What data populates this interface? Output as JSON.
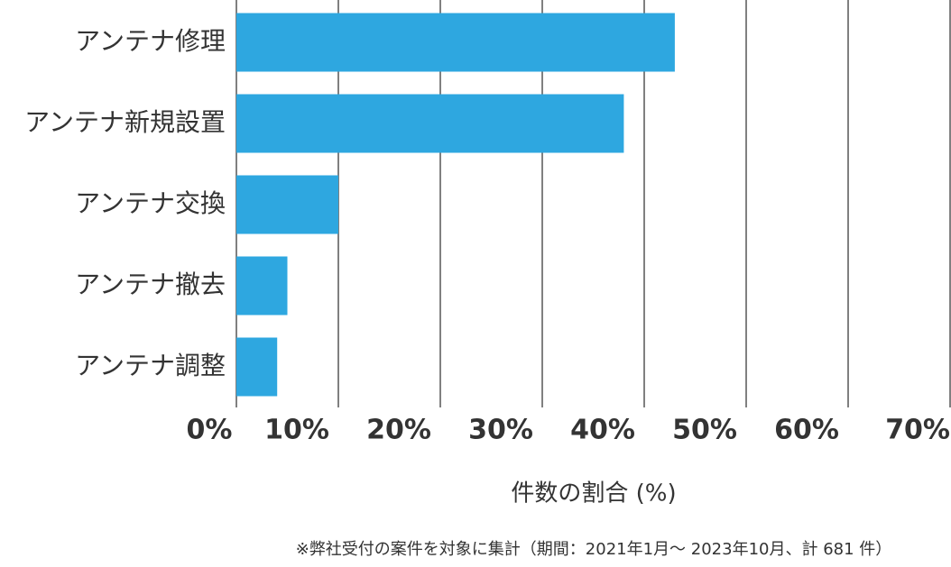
{
  "chart_data": {
    "type": "bar",
    "orientation": "horizontal",
    "categories": [
      "アンテナ修理",
      "アンテナ新規設置",
      "アンテナ交換",
      "アンテナ撤去",
      "アンテナ調整"
    ],
    "values": [
      43,
      38,
      10,
      5,
      4
    ],
    "color": "#2ea7e0",
    "xlim": [
      0,
      70
    ],
    "xticks": [
      {
        "value": 0,
        "label": "0%"
      },
      {
        "value": 10,
        "label": "10%"
      },
      {
        "value": 20,
        "label": "20%"
      },
      {
        "value": 30,
        "label": "30%"
      },
      {
        "value": 40,
        "label": "40%"
      },
      {
        "value": 50,
        "label": "50%"
      },
      {
        "value": 60,
        "label": "60%"
      },
      {
        "value": 70,
        "label": "70%"
      }
    ],
    "x_label": "件数の割合 (%)",
    "note": "※弊社受付の案件を対象に集計（期間：2021年1月～ 2023年10月、計 681 件）",
    "grid": true
  }
}
